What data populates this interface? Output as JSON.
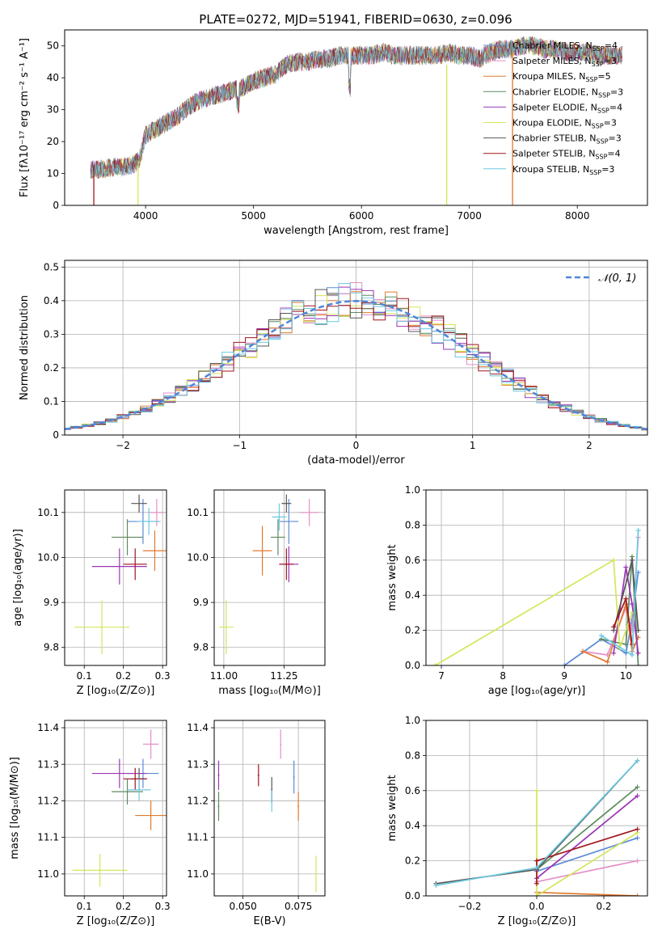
{
  "figure_title": "PLATE=0272, MJD=51941, FIBERID=0630, z=0.096",
  "models": [
    {
      "name": "Chabrier MILES",
      "nssp": "4",
      "color": "#5b8bd6"
    },
    {
      "name": "Salpeter MILES",
      "nssp": "3",
      "color": "#e58fc8"
    },
    {
      "name": "Kroupa MILES",
      "nssp": "5",
      "color": "#e07a2e"
    },
    {
      "name": "Chabrier ELODIE",
      "nssp": "3",
      "color": "#5e8a5e"
    },
    {
      "name": "Salpeter ELODIE",
      "nssp": "4",
      "color": "#9b35b5"
    },
    {
      "name": "Kroupa ELODIE",
      "nssp": "3",
      "color": "#d4e65a"
    },
    {
      "name": "Chabrier STELIB",
      "nssp": "3",
      "color": "#555555"
    },
    {
      "name": "Salpeter STELIB",
      "nssp": "4",
      "color": "#a0151f"
    },
    {
      "name": "Kroupa STELIB",
      "nssp": "3",
      "color": "#6cc9e0"
    }
  ],
  "legend_suffix": "N",
  "legend_sub": "SSP",
  "normal_legend": "𝒩(0, 1)",
  "normal_color": "#4f86d9",
  "chart_data": [
    {
      "id": "spectrum",
      "type": "line",
      "title": "PLATE=0272, MJD=51941, FIBERID=0630, z=0.096",
      "xlabel": "wavelength [Angstrom, rest frame]",
      "ylabel": "Flux [fλ10⁻¹⁷ erg cm⁻² s⁻¹ A⁻¹]",
      "xlim": [
        3250,
        8650
      ],
      "ylim": [
        0,
        55
      ],
      "xticks": [
        4000,
        5000,
        6000,
        7000,
        8000
      ],
      "yticks": [
        0,
        10,
        20,
        30,
        40,
        50
      ],
      "shape_x": [
        3500,
        3600,
        3700,
        3800,
        3900,
        3950,
        4000,
        4100,
        4200,
        4300,
        4400,
        4500,
        4600,
        4700,
        4800,
        4900,
        5000,
        5100,
        5200,
        5300,
        5400,
        5500,
        5600,
        5700,
        5800,
        5900,
        6000,
        6100,
        6200,
        6300,
        6400,
        6500,
        6600,
        6700,
        6800,
        6900,
        7000,
        7100,
        7200,
        7300,
        7400,
        7500,
        7600,
        7700,
        7800,
        7900,
        8000,
        8100,
        8200,
        8300,
        8400
      ],
      "shape_y": [
        11,
        11.5,
        12,
        12,
        13,
        15,
        22,
        24,
        26,
        28,
        31,
        33,
        34,
        35,
        36,
        37,
        39,
        40,
        41,
        44,
        45,
        45,
        46,
        46,
        47,
        47,
        47,
        47,
        48,
        47,
        47,
        47,
        47,
        47,
        48,
        47,
        47,
        46,
        48,
        49,
        49,
        50,
        50,
        49,
        49,
        48,
        48,
        48,
        47,
        47,
        47
      ]
    },
    {
      "id": "residuals",
      "type": "histogram",
      "xlabel": "(data-model)/error",
      "ylabel": "Normed distribution",
      "xlim": [
        -2.5,
        2.5
      ],
      "ylim": [
        0,
        0.52
      ],
      "xticks": [
        -2,
        -1,
        0,
        1,
        2
      ],
      "yticks": [
        0.0,
        0.1,
        0.2,
        0.3,
        0.4,
        0.5
      ],
      "bin_width": 0.1
    },
    {
      "id": "age_vs_Z",
      "type": "scatter",
      "xlabel": "Z [log₁₀(Z/Z⊙)]",
      "ylabel": "age  [log₁₀(age/yr)]",
      "xlim": [
        0.05,
        0.31
      ],
      "ylim": [
        9.76,
        10.15
      ],
      "xticks": [
        0.1,
        0.2,
        0.3
      ],
      "xticklabels": [
        "0.1",
        "0.2",
        "0.3"
      ],
      "yticks": [
        9.8,
        9.9,
        10.0,
        10.1
      ],
      "yticklabels": [
        "9.8",
        "9.9",
        "10.0",
        "10.1"
      ],
      "points": [
        {
          "x": 0.25,
          "y": 10.08,
          "xerr": 0.04,
          "yerr": 0.05
        },
        {
          "x": 0.285,
          "y": 10.1,
          "xerr": 0.02,
          "yerr": 0.03
        },
        {
          "x": 0.28,
          "y": 10.015,
          "xerr": 0.03,
          "yerr": 0.045
        },
        {
          "x": 0.21,
          "y": 10.045,
          "xerr": 0.04,
          "yerr": 0.04
        },
        {
          "x": 0.19,
          "y": 9.98,
          "xerr": 0.07,
          "yerr": 0.04
        },
        {
          "x": 0.145,
          "y": 9.845,
          "xerr": 0.07,
          "yerr": 0.06
        },
        {
          "x": 0.24,
          "y": 10.12,
          "xerr": 0.02,
          "yerr": 0.02
        },
        {
          "x": 0.23,
          "y": 9.985,
          "xerr": 0.03,
          "yerr": 0.035
        },
        {
          "x": 0.265,
          "y": 10.08,
          "xerr": 0.03,
          "yerr": 0.03
        }
      ]
    },
    {
      "id": "age_vs_mass",
      "type": "scatter",
      "xlabel": "mass [log₁₀(M/M⊙)]",
      "xlim": [
        10.96,
        11.42
      ],
      "ylim": [
        9.76,
        10.15
      ],
      "xticks": [
        11.0,
        11.25
      ],
      "xticklabels": [
        "11.00",
        "11.25"
      ],
      "yticks": [
        9.8,
        9.9,
        10.0,
        10.1
      ],
      "yticklabels": [
        "9.8",
        "9.9",
        "10.0",
        "10.1"
      ],
      "points": [
        {
          "x": 11.27,
          "y": 10.08,
          "xerr": 0.04,
          "yerr": 0.05
        },
        {
          "x": 11.355,
          "y": 10.1,
          "xerr": 0.04,
          "yerr": 0.03
        },
        {
          "x": 11.16,
          "y": 10.015,
          "xerr": 0.04,
          "yerr": 0.055
        },
        {
          "x": 11.225,
          "y": 10.045,
          "xerr": 0.03,
          "yerr": 0.04
        },
        {
          "x": 11.27,
          "y": 9.985,
          "xerr": 0.04,
          "yerr": 0.04
        },
        {
          "x": 11.01,
          "y": 9.845,
          "xerr": 0.03,
          "yerr": 0.06
        },
        {
          "x": 11.26,
          "y": 10.12,
          "xerr": 0.02,
          "yerr": 0.02
        },
        {
          "x": 11.26,
          "y": 9.985,
          "xerr": 0.03,
          "yerr": 0.035
        },
        {
          "x": 11.23,
          "y": 10.09,
          "xerr": 0.03,
          "yerr": 0.03
        }
      ]
    },
    {
      "id": "mass_weight_vs_age",
      "type": "line",
      "xlabel": "age  [log₁₀(age/yr)]",
      "ylabel": "mass weight",
      "xlim": [
        6.75,
        10.35
      ],
      "ylim": [
        0,
        1.0
      ],
      "xticks": [
        7,
        8,
        9,
        10
      ],
      "xticklabels": [
        "7",
        "8",
        "9",
        "10"
      ],
      "yticks": [
        0.0,
        0.2,
        0.4,
        0.6,
        0.8,
        1.0
      ],
      "yticklabels": [
        "0.0",
        "0.2",
        "0.4",
        "0.6",
        "0.8",
        "1.0"
      ],
      "series": [
        {
          "x": [
            9.0,
            9.6,
            10.0,
            10.1,
            10.2
          ],
          "y": [
            0.0,
            0.15,
            0.07,
            0.26,
            0.53
          ]
        },
        {
          "x": [
            9.3,
            9.7,
            10.0,
            10.1,
            10.2
          ],
          "y": [
            0.08,
            0.06,
            0.33,
            0.2,
            0.73
          ]
        },
        {
          "x": [
            9.3,
            9.7,
            10.0,
            10.1,
            10.2
          ],
          "y": [
            0.08,
            0.02,
            0.35,
            0.08,
            0.16
          ]
        },
        {
          "x": [
            9.6,
            10.0,
            10.1,
            10.2
          ],
          "y": [
            0.15,
            0.12,
            0.62,
            0.0
          ]
        },
        {
          "x": [
            9.8,
            10.0,
            10.1,
            10.2
          ],
          "y": [
            0.07,
            0.56,
            0.35,
            0.07
          ]
        },
        {
          "x": [
            6.9,
            9.8,
            9.9,
            10.1
          ],
          "y": [
            0.0,
            0.6,
            0.1,
            0.3
          ]
        },
        {
          "x": [
            9.8,
            10.1,
            10.2
          ],
          "y": [
            0.2,
            0.6,
            0.2
          ]
        },
        {
          "x": [
            9.8,
            10.0,
            10.1
          ],
          "y": [
            0.22,
            0.38,
            0.12
          ]
        },
        {
          "x": [
            9.6,
            10.1,
            10.2
          ],
          "y": [
            0.17,
            0.06,
            0.77
          ]
        }
      ]
    },
    {
      "id": "mass_vs_Z",
      "type": "scatter",
      "xlabel": "Z [log₁₀(Z/Z⊙)]",
      "ylabel": "mass [log₁₀(M/M⊙)]",
      "xlim": [
        0.05,
        0.31
      ],
      "ylim": [
        10.94,
        11.42
      ],
      "xticks": [
        0.1,
        0.2,
        0.3
      ],
      "xticklabels": [
        "0.1",
        "0.2",
        "0.3"
      ],
      "yticks": [
        11.0,
        11.1,
        11.2,
        11.3,
        11.4
      ],
      "yticklabels": [
        "11.0",
        "11.1",
        "11.2",
        "11.3",
        "11.4"
      ],
      "points": [
        {
          "x": 0.25,
          "y": 11.275,
          "xerr": 0.04,
          "yerr": 0.04
        },
        {
          "x": 0.27,
          "y": 11.355,
          "xerr": 0.02,
          "yerr": 0.04
        },
        {
          "x": 0.27,
          "y": 11.16,
          "xerr": 0.04,
          "yerr": 0.04
        },
        {
          "x": 0.21,
          "y": 11.225,
          "xerr": 0.04,
          "yerr": 0.035
        },
        {
          "x": 0.19,
          "y": 11.275,
          "xerr": 0.07,
          "yerr": 0.04
        },
        {
          "x": 0.14,
          "y": 11.01,
          "xerr": 0.07,
          "yerr": 0.045
        },
        {
          "x": 0.24,
          "y": 11.26,
          "xerr": 0.02,
          "yerr": 0.03
        },
        {
          "x": 0.23,
          "y": 11.26,
          "xerr": 0.03,
          "yerr": 0.03
        },
        {
          "x": 0.24,
          "y": 11.23,
          "xerr": 0.03,
          "yerr": 0.03
        }
      ]
    },
    {
      "id": "mass_vs_EBV",
      "type": "scatter",
      "xlabel": "E(B-V)",
      "xlim": [
        0.037,
        0.087
      ],
      "ylim": [
        10.94,
        11.42
      ],
      "xticks": [
        0.05,
        0.075
      ],
      "xticklabels": [
        "0.050",
        "0.075"
      ],
      "yticks": [
        11.0,
        11.1,
        11.2,
        11.3,
        11.4
      ],
      "yticklabels": [
        "11.0",
        "11.1",
        "11.2",
        "11.3",
        "11.4"
      ],
      "points": [
        {
          "x": 0.073,
          "y": 11.265,
          "xerr": 0,
          "yerr": 0.045
        },
        {
          "x": 0.067,
          "y": 11.355,
          "xerr": 0,
          "yerr": 0.04
        },
        {
          "x": 0.075,
          "y": 11.185,
          "xerr": 0,
          "yerr": 0.04
        },
        {
          "x": 0.039,
          "y": 11.185,
          "xerr": 0,
          "yerr": 0.04
        },
        {
          "x": 0.039,
          "y": 11.27,
          "xerr": 0,
          "yerr": 0.04
        },
        {
          "x": 0.083,
          "y": 11.0,
          "xerr": 0,
          "yerr": 0.05
        },
        {
          "x": 0.063,
          "y": 11.23,
          "xerr": 0,
          "yerr": 0.035
        },
        {
          "x": 0.057,
          "y": 11.27,
          "xerr": 0,
          "yerr": 0.03
        },
        {
          "x": 0.063,
          "y": 11.2,
          "xerr": 0,
          "yerr": 0.03
        }
      ]
    },
    {
      "id": "mass_weight_vs_Z",
      "type": "line",
      "xlabel": "Z [log₁₀(Z/Z⊙)]",
      "ylabel": "mass weight",
      "xlim": [
        -0.33,
        0.33
      ],
      "ylim": [
        0,
        1.0
      ],
      "xticks": [
        -0.2,
        0.0,
        0.2
      ],
      "xticklabels": [
        "−0.2",
        "0.0",
        "0.2"
      ],
      "yticks": [
        0.0,
        0.2,
        0.4,
        0.6,
        0.8,
        1.0
      ],
      "yticklabels": [
        "0.0",
        "0.2",
        "0.4",
        "0.6",
        "0.8",
        "1.0"
      ],
      "series": [
        {
          "x": [
            0.0,
            0.3
          ],
          "y": [
            0.14,
            0.33
          ]
        },
        {
          "x": [
            0.0,
            0.3
          ],
          "y": [
            0.08,
            0.2
          ]
        },
        {
          "x": [
            0.0,
            0.3
          ],
          "y": [
            0.02,
            0.0
          ]
        },
        {
          "x": [
            0.0,
            0.3
          ],
          "y": [
            0.15,
            0.62
          ]
        },
        {
          "x": [
            0.0,
            0.3
          ],
          "y": [
            0.1,
            0.57
          ]
        },
        {
          "x": [
            0.0,
            0.0,
            0.3
          ],
          "y": [
            0.6,
            0.0,
            0.36
          ]
        },
        {
          "x": [
            -0.3,
            0.0,
            0.3
          ],
          "y": [
            0.07,
            0.15,
            0.77
          ]
        },
        {
          "x": [
            0.0,
            0.0,
            0.3
          ],
          "y": [
            0.07,
            0.2,
            0.38
          ]
        },
        {
          "x": [
            -0.3,
            0.0,
            0.3
          ],
          "y": [
            0.06,
            0.16,
            0.77
          ]
        }
      ]
    }
  ]
}
